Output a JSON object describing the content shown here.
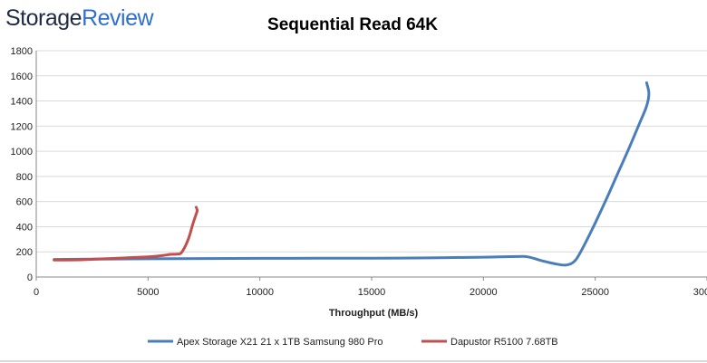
{
  "logo": {
    "part1": "Storage",
    "part2": "Review",
    "color1": "#1f2a44",
    "color2": "#2e6fd0"
  },
  "chart_data": {
    "type": "line",
    "title": "Sequential Read 64K",
    "xlabel": "Throughput (MB/s)",
    "ylabel": "",
    "xlim": [
      0,
      30000
    ],
    "ylim": [
      0,
      1800
    ],
    "xticks": [
      "0",
      "5000",
      "10000",
      "15000",
      "20000",
      "25000",
      "30000"
    ],
    "xtick_values": [
      0,
      5000,
      10000,
      15000,
      20000,
      25000,
      30000
    ],
    "yticks": [
      "0",
      "200",
      "400",
      "600",
      "800",
      "1000",
      "1200",
      "1400",
      "1600",
      "1800"
    ],
    "ytick_values": [
      0,
      200,
      400,
      600,
      800,
      1000,
      1200,
      1400,
      1600,
      1800
    ],
    "grid": true,
    "legend_position": "bottom",
    "series": [
      {
        "name": "Apex Storage X21 21 x 1TB Samsung 980 Pro",
        "color": "#4a7ebb",
        "x": [
          800,
          2500,
          5000,
          7500,
          10000,
          12500,
          15000,
          17500,
          20000,
          21500,
          22000,
          22700,
          23200,
          23700,
          24100,
          24500,
          25000,
          25500,
          26000,
          26500,
          27000,
          27300,
          27400,
          27300
        ],
        "y": [
          140,
          142,
          145,
          147,
          148,
          149,
          150,
          152,
          158,
          163,
          160,
          125,
          105,
          95,
          130,
          250,
          430,
          620,
          820,
          1020,
          1230,
          1360,
          1460,
          1545
        ]
      },
      {
        "name": "Dapustor R5100 7.68TB",
        "color": "#c0504d",
        "x": [
          800,
          2000,
          3000,
          4000,
          5000,
          5700,
          6000,
          6300,
          6500,
          6800,
          7000,
          7150,
          7200,
          7150
        ],
        "y": [
          135,
          137,
          145,
          152,
          160,
          172,
          180,
          182,
          195,
          300,
          420,
          500,
          530,
          555
        ]
      }
    ]
  }
}
